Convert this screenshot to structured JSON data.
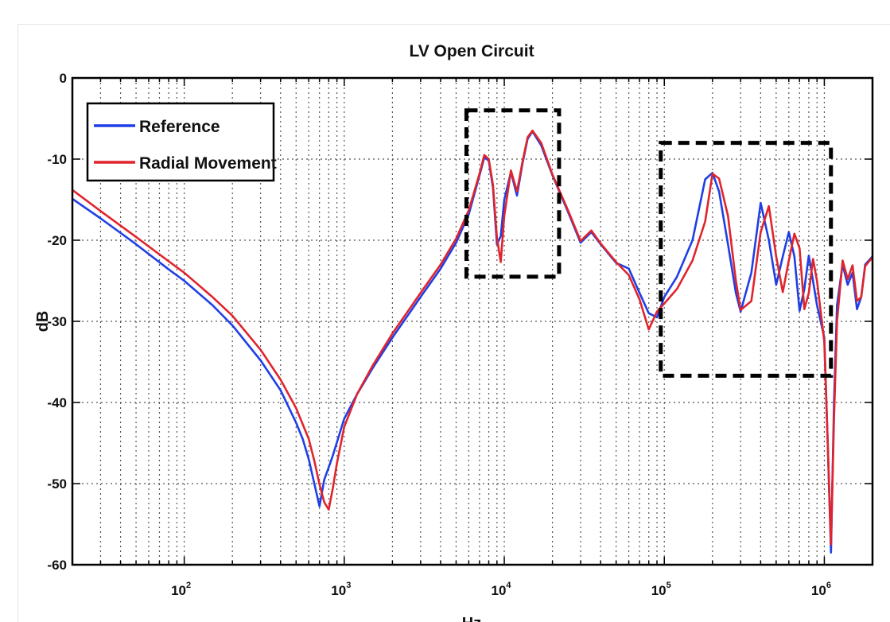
{
  "chart_data": {
    "type": "line",
    "title": "LV Open Circuit",
    "xlabel": "Hz",
    "ylabel": "dB",
    "x_scale": "log",
    "xlim": [
      20,
      2000000
    ],
    "ylim": [
      -60,
      0
    ],
    "grid": true,
    "legend_position": "top-left",
    "x_ticks": [
      {
        "base": "10",
        "exp": "2",
        "value": 100
      },
      {
        "base": "10",
        "exp": "3",
        "value": 1000
      },
      {
        "base": "10",
        "exp": "4",
        "value": 10000
      },
      {
        "base": "10",
        "exp": "5",
        "value": 100000
      },
      {
        "base": "10",
        "exp": "6",
        "value": 1000000
      }
    ],
    "y_ticks": [
      "0",
      "-10",
      "-20",
      "-30",
      "-40",
      "-50",
      "-60"
    ],
    "series": [
      {
        "name": "Reference",
        "color": "#1f3fe6",
        "x": [
          20,
          30,
          50,
          80,
          100,
          150,
          200,
          300,
          400,
          500,
          550,
          600,
          650,
          700,
          750,
          800,
          850,
          1000,
          1200,
          1500,
          2000,
          3000,
          4000,
          5000,
          6000,
          7000,
          7500,
          8000,
          8500,
          9000,
          9500,
          10000,
          11000,
          12000,
          13000,
          14000,
          15000,
          17000,
          20000,
          25000,
          30000,
          35000,
          40000,
          50000,
          60000,
          70000,
          80000,
          90000,
          100000,
          120000,
          150000,
          180000,
          200000,
          220000,
          250000,
          280000,
          300000,
          350000,
          400000,
          450000,
          500000,
          550000,
          600000,
          650000,
          700000,
          750000,
          800000,
          850000,
          900000,
          1000000,
          1050000,
          1100000,
          1150000,
          1200000,
          1300000,
          1400000,
          1500000,
          1600000,
          1700000,
          1800000,
          2000000
        ],
        "y": [
          -14.9,
          -17.3,
          -20.5,
          -23.6,
          -25,
          -28,
          -30.5,
          -34.8,
          -38.5,
          -42.5,
          -44.5,
          -47,
          -50,
          -52.8,
          -49.5,
          -48,
          -46.5,
          -42,
          -39,
          -35.8,
          -32,
          -27,
          -23.5,
          -20.3,
          -16.8,
          -12,
          -9.8,
          -10.2,
          -13.5,
          -20.5,
          -19.5,
          -15,
          -11.6,
          -14.5,
          -10.5,
          -7.5,
          -6.6,
          -8.3,
          -12,
          -16.5,
          -20.3,
          -19,
          -20.5,
          -22.8,
          -23.5,
          -26.5,
          -29,
          -29.5,
          -27,
          -24.5,
          -20,
          -12.5,
          -11.7,
          -14,
          -20.5,
          -26.5,
          -28.8,
          -24,
          -15.4,
          -20,
          -25.5,
          -22,
          -19,
          -22,
          -28.7,
          -26,
          -21.9,
          -25,
          -28,
          -32,
          -45,
          -58.5,
          -40,
          -28,
          -23,
          -25.5,
          -24,
          -28.5,
          -27,
          -23,
          -22
        ]
      },
      {
        "name": "Radial Movement",
        "color": "#e0242c",
        "x": [
          20,
          30,
          50,
          80,
          100,
          150,
          200,
          300,
          400,
          500,
          600,
          650,
          700,
          750,
          800,
          850,
          900,
          1000,
          1200,
          1500,
          2000,
          3000,
          4000,
          5000,
          6000,
          7000,
          7500,
          8000,
          8500,
          9000,
          9500,
          10000,
          11000,
          12000,
          13000,
          14000,
          15000,
          17000,
          20000,
          25000,
          30000,
          35000,
          40000,
          50000,
          60000,
          70000,
          80000,
          90000,
          100000,
          120000,
          150000,
          180000,
          200000,
          220000,
          250000,
          280000,
          300000,
          350000,
          400000,
          450000,
          500000,
          550000,
          600000,
          650000,
          700000,
          750000,
          800000,
          850000,
          900000,
          1000000,
          1050000,
          1100000,
          1150000,
          1200000,
          1300000,
          1400000,
          1500000,
          1600000,
          1700000,
          1800000,
          2000000
        ],
        "y": [
          -13.8,
          -16.4,
          -19.6,
          -22.6,
          -24,
          -27,
          -29.3,
          -33.5,
          -37.2,
          -40.7,
          -44.5,
          -47.2,
          -50.1,
          -52.3,
          -53.2,
          -50.5,
          -47.5,
          -43,
          -39,
          -35.5,
          -31.5,
          -26.5,
          -23,
          -19.8,
          -16.3,
          -11.8,
          -9.5,
          -10,
          -13.2,
          -19.7,
          -22.7,
          -17,
          -11.4,
          -14,
          -10.3,
          -7.3,
          -6.5,
          -8,
          -11.9,
          -16.3,
          -20.1,
          -18.8,
          -20.4,
          -22.7,
          -24.3,
          -27.3,
          -31,
          -28.8,
          -27.8,
          -26,
          -22.5,
          -17.7,
          -11.8,
          -12.4,
          -17,
          -25,
          -28.6,
          -27.5,
          -19,
          -15.8,
          -22,
          -26.4,
          -22.5,
          -19.2,
          -21,
          -28.5,
          -26.5,
          -22.3,
          -25,
          -32.5,
          -45,
          -57.5,
          -42,
          -30,
          -22.5,
          -24.8,
          -23.1,
          -27.5,
          -27,
          -23.2,
          -22.1
        ]
      }
    ],
    "annotations": [
      {
        "type": "dashed-box",
        "x_range": [
          5800,
          22000
        ],
        "y_range": [
          -24.5,
          -4
        ]
      },
      {
        "type": "dashed-box",
        "x_range": [
          95000,
          1100000
        ],
        "y_range": [
          -36.7,
          -8
        ]
      }
    ]
  }
}
